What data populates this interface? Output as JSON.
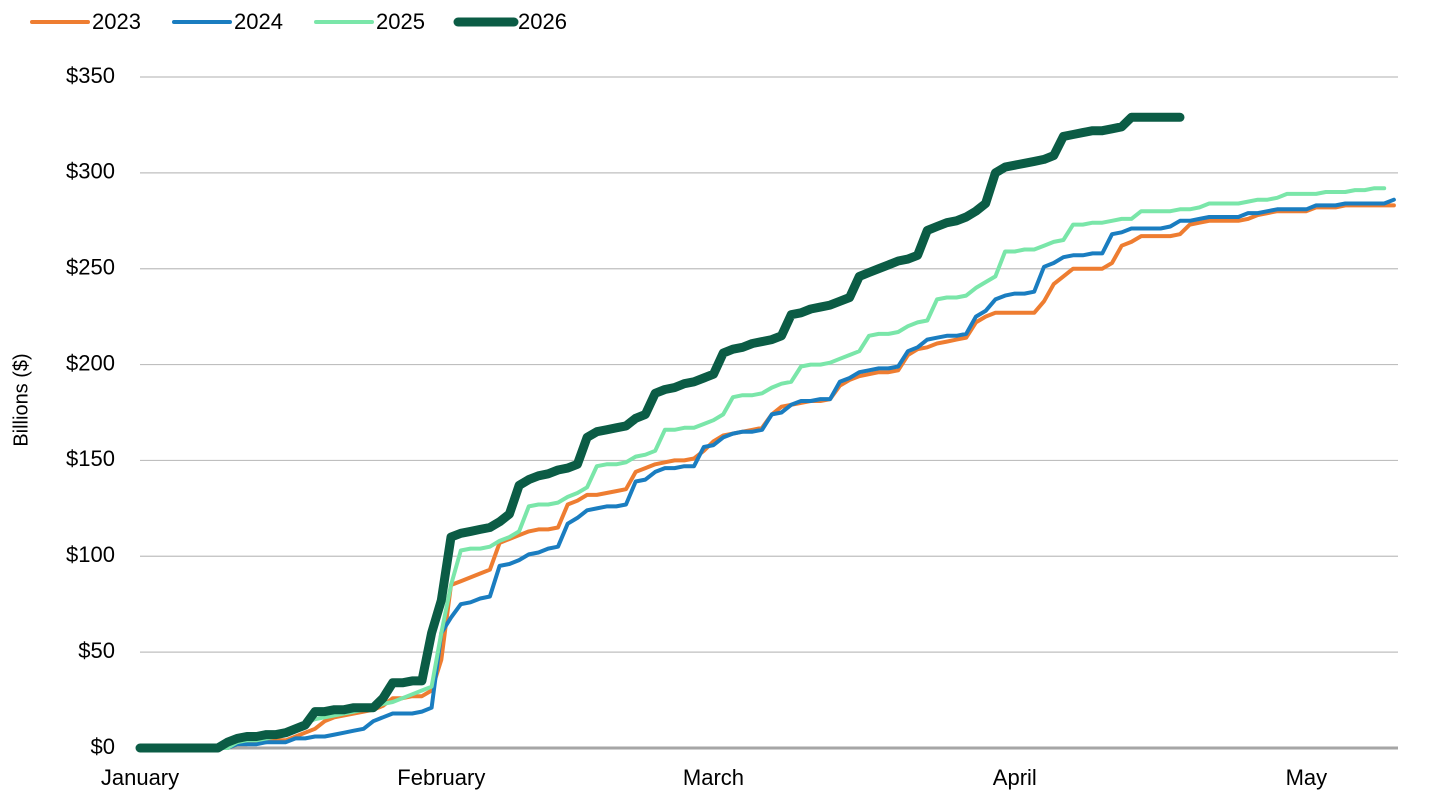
{
  "chart_data": {
    "type": "line",
    "y_label": "Billions ($)",
    "legend": "top-left",
    "grid": true,
    "ylim": [
      0,
      350
    ],
    "yticks": [
      {
        "value": 0,
        "label": "$0"
      },
      {
        "value": 50,
        "label": "$50"
      },
      {
        "value": 100,
        "label": "$100"
      },
      {
        "value": 150,
        "label": "$150"
      },
      {
        "value": 200,
        "label": "$200"
      },
      {
        "value": 250,
        "label": "$250"
      },
      {
        "value": 300,
        "label": "$300"
      },
      {
        "value": 350,
        "label": "$350"
      }
    ],
    "categories": [
      "January",
      null,
      null,
      null,
      null,
      null,
      null,
      null,
      null,
      null,
      null,
      null,
      null,
      null,
      null,
      null,
      null,
      null,
      null,
      null,
      null,
      null,
      null,
      null,
      null,
      null,
      null,
      null,
      null,
      null,
      null,
      "February",
      null,
      null,
      null,
      null,
      null,
      null,
      null,
      null,
      null,
      null,
      null,
      null,
      null,
      null,
      null,
      null,
      null,
      null,
      null,
      null,
      null,
      null,
      null,
      null,
      null,
      null,
      null,
      "March",
      null,
      null,
      null,
      null,
      null,
      null,
      null,
      null,
      null,
      null,
      null,
      null,
      null,
      null,
      null,
      null,
      null,
      null,
      null,
      null,
      null,
      null,
      null,
      null,
      null,
      null,
      null,
      null,
      null,
      null,
      "April",
      null,
      null,
      null,
      null,
      null,
      null,
      null,
      null,
      null,
      null,
      null,
      null,
      null,
      null,
      null,
      null,
      null,
      null,
      null,
      null,
      null,
      null,
      null,
      null,
      null,
      null,
      null,
      null,
      null,
      "May",
      null,
      null,
      null,
      null,
      null,
      null,
      null,
      null,
      null
    ],
    "series": [
      {
        "name": "2023",
        "color": "#ee7d31",
        "width": 4,
        "values": [
          0,
          0,
          0,
          0,
          0,
          0,
          0,
          0,
          0,
          0,
          2,
          2,
          3,
          3,
          4,
          4,
          6,
          8,
          10,
          14,
          16,
          17,
          18,
          19,
          20,
          22,
          26,
          26,
          27,
          27,
          30,
          46,
          85,
          87,
          89,
          91,
          93,
          107,
          109,
          111,
          113,
          114,
          114,
          115,
          127,
          129,
          132,
          132,
          133,
          134,
          135,
          144,
          146,
          148,
          149,
          150,
          150,
          151,
          155,
          160,
          163,
          164,
          165,
          166,
          167,
          174,
          178,
          179,
          180,
          181,
          181,
          182,
          189,
          192,
          194,
          195,
          196,
          196,
          197,
          205,
          208,
          209,
          211,
          212,
          213,
          214,
          222,
          225,
          227,
          227,
          227,
          227,
          227,
          233,
          242,
          246,
          250,
          250,
          250,
          250,
          253,
          262,
          264,
          267,
          267,
          267,
          267,
          268,
          273,
          274,
          275,
          275,
          275,
          275,
          276,
          278,
          279,
          280,
          280,
          280,
          280,
          282,
          282,
          282,
          283,
          283,
          283,
          283,
          283,
          283
        ]
      },
      {
        "name": "2024",
        "color": "#1a7dc0",
        "width": 4,
        "values": [
          0,
          0,
          0,
          0,
          0,
          0,
          0,
          0,
          0,
          0,
          2,
          2,
          2,
          3,
          3,
          3,
          5,
          5,
          6,
          6,
          7,
          8,
          9,
          10,
          14,
          16,
          18,
          18,
          18,
          19,
          21,
          60,
          68,
          75,
          76,
          78,
          79,
          95,
          96,
          98,
          101,
          102,
          104,
          105,
          117,
          120,
          124,
          125,
          126,
          126,
          127,
          139,
          140,
          144,
          146,
          146,
          147,
          147,
          157,
          158,
          162,
          164,
          165,
          165,
          166,
          174,
          175,
          179,
          181,
          181,
          182,
          182,
          191,
          193,
          196,
          197,
          198,
          198,
          199,
          207,
          209,
          213,
          214,
          215,
          215,
          216,
          225,
          228,
          234,
          236,
          237,
          237,
          238,
          251,
          253,
          256,
          257,
          257,
          258,
          258,
          268,
          269,
          271,
          271,
          271,
          271,
          272,
          275,
          275,
          276,
          277,
          277,
          277,
          277,
          279,
          279,
          280,
          281,
          281,
          281,
          281,
          283,
          283,
          283,
          284,
          284,
          284,
          284,
          284,
          286
        ]
      },
      {
        "name": "2025",
        "color": "#7ae6a9",
        "width": 4,
        "values": [
          0,
          0,
          0,
          0,
          0,
          0,
          0,
          0,
          0,
          0,
          3,
          4,
          4,
          5,
          6,
          8,
          11,
          13,
          15,
          16,
          17,
          18,
          19,
          20,
          21,
          23,
          24,
          26,
          28,
          30,
          32,
          60,
          85,
          103,
          104,
          104,
          105,
          108,
          110,
          113,
          126,
          127,
          127,
          128,
          131,
          133,
          136,
          147,
          148,
          148,
          149,
          152,
          153,
          155,
          166,
          166,
          167,
          167,
          169,
          171,
          174,
          183,
          184,
          184,
          185,
          188,
          190,
          191,
          199,
          200,
          200,
          201,
          203,
          205,
          207,
          215,
          216,
          216,
          217,
          220,
          222,
          223,
          234,
          235,
          235,
          236,
          240,
          243,
          246,
          259,
          259,
          260,
          260,
          262,
          264,
          265,
          273,
          273,
          274,
          274,
          275,
          276,
          276,
          280,
          280,
          280,
          280,
          281,
          281,
          282,
          284,
          284,
          284,
          284,
          285,
          286,
          286,
          287,
          289,
          289,
          289,
          289,
          290,
          290,
          290,
          291,
          291,
          292,
          292,
          null
        ]
      },
      {
        "name": "2026",
        "color": "#0b5c45",
        "width": 9,
        "values": [
          0,
          0,
          0,
          0,
          0,
          0,
          0,
          0,
          0,
          3,
          5,
          6,
          6,
          7,
          7,
          8,
          10,
          12,
          19,
          19,
          20,
          20,
          21,
          21,
          21,
          26,
          34,
          34,
          35,
          35,
          60,
          77,
          110,
          112,
          113,
          114,
          115,
          118,
          122,
          137,
          140,
          142,
          143,
          145,
          146,
          148,
          162,
          165,
          166,
          167,
          168,
          172,
          174,
          185,
          187,
          188,
          190,
          191,
          193,
          195,
          206,
          208,
          209,
          211,
          212,
          213,
          215,
          226,
          227,
          229,
          230,
          231,
          233,
          235,
          246,
          248,
          250,
          252,
          254,
          255,
          257,
          270,
          272,
          274,
          275,
          277,
          280,
          284,
          300,
          303,
          304,
          305,
          306,
          307,
          309,
          319,
          320,
          321,
          322,
          322,
          323,
          324,
          329,
          329,
          329,
          329,
          329,
          329,
          null,
          null,
          null,
          null,
          null,
          null,
          null,
          null,
          null,
          null,
          null,
          null,
          null,
          null,
          null,
          null,
          null,
          null,
          null,
          null,
          null,
          null
        ]
      }
    ]
  }
}
